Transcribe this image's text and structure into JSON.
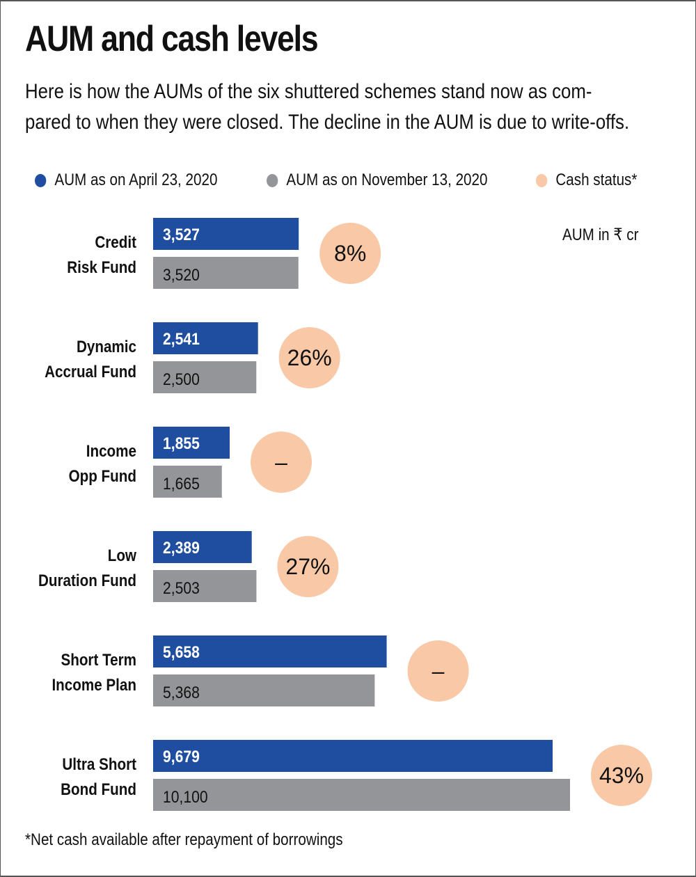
{
  "header": {
    "title": "AUM and cash levels",
    "subtitle_line1": "Here is how the AUMs of the six shuttered schemes stand now as com-",
    "subtitle_line2": "pared to when they were closed. The decline in the AUM is due to write-offs."
  },
  "legend": [
    {
      "label": "AUM as on April 23, 2020",
      "color": "#1f4ea1"
    },
    {
      "label": "AUM as on November 13, 2020",
      "color": "#939598"
    },
    {
      "label": "Cash status*",
      "color": "#f9c8a6"
    }
  ],
  "unit_note": "AUM in ₹ cr",
  "footnote": "*Net cash available after repayment of borrowings",
  "colors": {
    "april": "#1f4ea1",
    "november": "#939598",
    "cash": "#f9c8a6",
    "april_text": "#ffffff",
    "november_text": "#111111"
  },
  "chart_data": {
    "type": "bar",
    "orientation": "horizontal",
    "title": "AUM and cash levels",
    "xlabel": "",
    "ylabel": "",
    "unit": "AUM in ₹ cr",
    "grid": false,
    "legend_position": "top",
    "categories": [
      [
        "Credit",
        "Risk Fund"
      ],
      [
        "Dynamic",
        "Accrual Fund"
      ],
      [
        "Income",
        "Opp Fund"
      ],
      [
        "Low",
        "Duration Fund"
      ],
      [
        "Short Term",
        "Income Plan"
      ],
      [
        "Ultra Short",
        "Bond Fund"
      ]
    ],
    "series": [
      {
        "name": "AUM as on April 23, 2020",
        "values": [
          3527,
          2541,
          1855,
          2389,
          5658,
          9679
        ],
        "labels": [
          "3,527",
          "2,541",
          "1,855",
          "2,389",
          "5,658",
          "9,679"
        ]
      },
      {
        "name": "AUM as on November 13, 2020",
        "values": [
          3520,
          2500,
          1665,
          2503,
          5368,
          10100
        ],
        "labels": [
          "3,520",
          "2,500",
          "1,665",
          "2,503",
          "5,368",
          "10,100"
        ]
      }
    ],
    "cash_status": {
      "name": "Cash status*",
      "values": [
        8,
        26,
        null,
        27,
        null,
        43
      ],
      "labels": [
        "8%",
        "26%",
        "–",
        "27%",
        "–",
        "43%"
      ]
    },
    "xlim": [
      0,
      10100
    ]
  }
}
